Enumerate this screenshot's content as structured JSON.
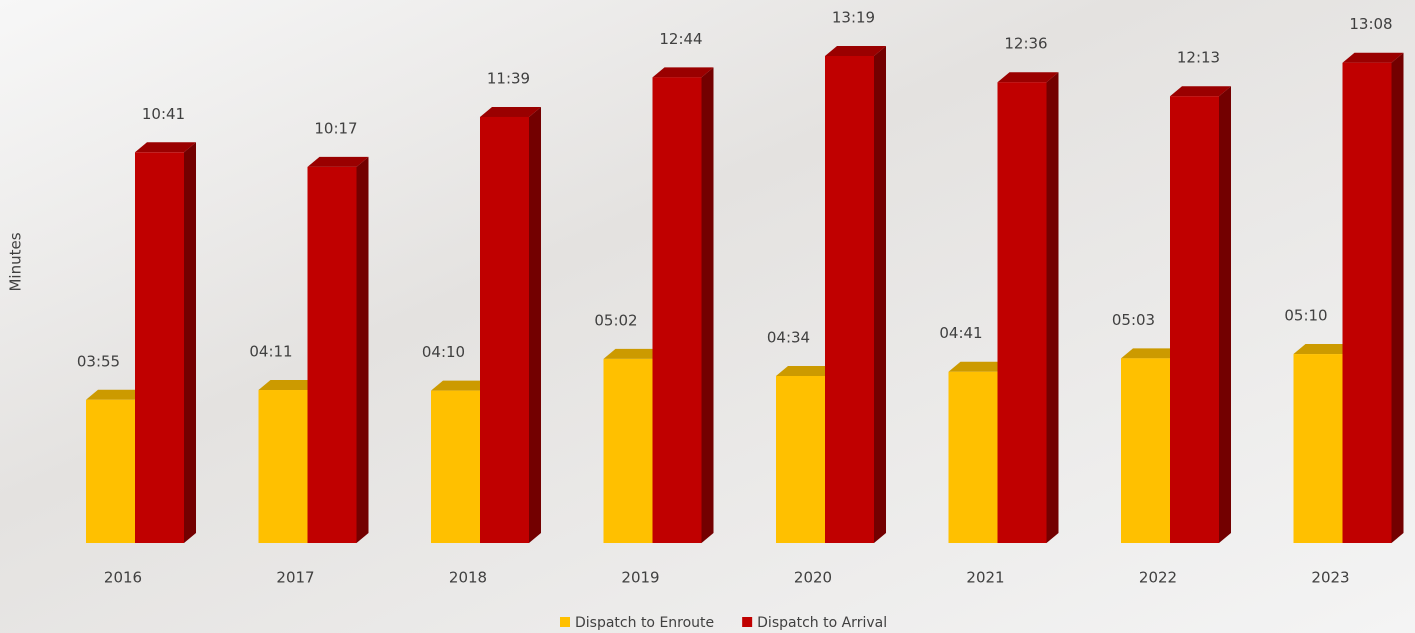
{
  "chart_data": {
    "type": "bar3d",
    "y_label": "Minutes",
    "categories": [
      "2016",
      "2017",
      "2018",
      "2019",
      "2020",
      "2021",
      "2022",
      "2023"
    ],
    "ylim": [
      0,
      14
    ],
    "series": [
      {
        "name": "Dispatch to Enroute",
        "color": "#ffc000",
        "values": [
          3.9167,
          4.1833,
          4.1667,
          5.0333,
          4.5667,
          4.6833,
          5.05,
          5.1667
        ],
        "value_labels": [
          "03:55",
          "04:11",
          "04:10",
          "05:02",
          "04:34",
          "04:41",
          "05:03",
          "05:10"
        ]
      },
      {
        "name": "Dispatch to Arrival",
        "color": "#c00000",
        "values": [
          10.6833,
          10.2833,
          11.65,
          12.7333,
          13.3167,
          12.6,
          12.2167,
          13.1333
        ],
        "value_labels": [
          "10:41",
          "10:17",
          "11:39",
          "12:44",
          "13:19",
          "12:36",
          "12:13",
          "13:08"
        ]
      }
    ]
  }
}
